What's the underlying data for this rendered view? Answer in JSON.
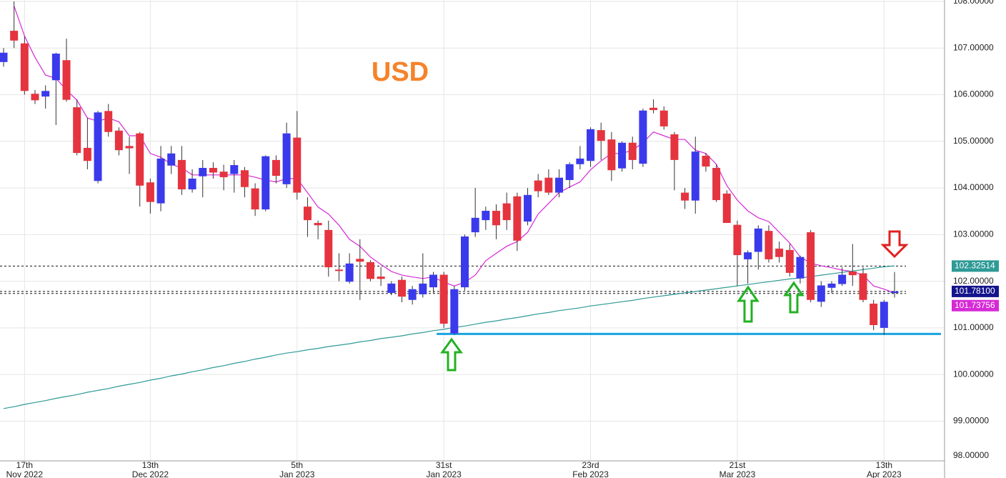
{
  "chart_data": {
    "type": "candlestick",
    "title": "USD",
    "title_color": "#f5832a",
    "ylim": [
      97.95,
      108.03
    ],
    "yticks": [
      {
        "value": 98,
        "label": "98.00000"
      },
      {
        "value": 99,
        "label": "99.00000"
      },
      {
        "value": 100,
        "label": "100.00000"
      },
      {
        "value": 101,
        "label": "101.00000"
      },
      {
        "value": 102,
        "label": "102.00000"
      },
      {
        "value": 103,
        "label": "103.00000"
      },
      {
        "value": 104,
        "label": "104.00000"
      },
      {
        "value": 105,
        "label": "105.00000"
      },
      {
        "value": 106,
        "label": "106.00000"
      },
      {
        "value": 107,
        "label": "107.00000"
      },
      {
        "value": 108,
        "label": "108.00000"
      }
    ],
    "grid": true,
    "up_color": "#3a3aec",
    "down_color": "#e5343f",
    "categories": [
      null,
      null,
      [
        "17th",
        "Nov 2022"
      ],
      null,
      null,
      null,
      null,
      null,
      null,
      null,
      null,
      null,
      null,
      null,
      [
        "13th",
        "Dec 2022"
      ],
      null,
      null,
      null,
      null,
      null,
      null,
      null,
      null,
      null,
      null,
      null,
      null,
      null,
      [
        "5th",
        "Jan 2023"
      ],
      null,
      null,
      null,
      null,
      null,
      null,
      null,
      null,
      null,
      null,
      null,
      null,
      null,
      [
        "31st",
        "Jan 2023"
      ],
      null,
      null,
      null,
      null,
      null,
      null,
      null,
      null,
      null,
      null,
      null,
      null,
      null,
      [
        "23rd",
        "Feb 2023"
      ],
      null,
      null,
      null,
      null,
      null,
      null,
      null,
      null,
      null,
      null,
      null,
      null,
      null,
      [
        "21st",
        "Mar 2023"
      ],
      null,
      null,
      null,
      null,
      null,
      null,
      null,
      null,
      null,
      null,
      null,
      null,
      null,
      [
        "13th",
        "Apr 2023"
      ],
      null
    ],
    "open": [
      106.7,
      107.37,
      107.1,
      106.02,
      105.96,
      106.31,
      106.74,
      105.73,
      104.86,
      104.15,
      105.65,
      105.23,
      104.9,
      105.17,
      104.12,
      103.67,
      104.48,
      104.6,
      103.97,
      104.25,
      104.43,
      104.35,
      104.3,
      104.38,
      103.99,
      103.54,
      104.6,
      104.08,
      105.08,
      103.6,
      103.25,
      103.1,
      102.25,
      101.99,
      102.48,
      102.41,
      102.1,
      101.75,
      102.03,
      101.6,
      101.72,
      101.87,
      102.14,
      100.88,
      101.87,
      103.05,
      103.31,
      103.51,
      103.67,
      103.82,
      103.28,
      104.16,
      104.22,
      103.9,
      104.17,
      104.51,
      104.58,
      105.24,
      105.04,
      104.42,
      104.97,
      104.52,
      105.72,
      105.66,
      105.15,
      103.9,
      103.73,
      104.69,
      104.43,
      103.88,
      103.21,
      102.47,
      102.63,
      103.08,
      102.7,
      102.67,
      102.06,
      103.05,
      101.56,
      101.86,
      101.94,
      102.21,
      102.17,
      101.52,
      101.0,
      101.75
    ],
    "high": [
      107.0,
      108.0,
      107.25,
      106.1,
      106.2,
      106.9,
      107.2,
      105.9,
      105.5,
      105.65,
      105.8,
      105.3,
      105.1,
      105.2,
      104.2,
      104.9,
      104.9,
      104.9,
      104.4,
      104.6,
      104.55,
      104.5,
      104.6,
      104.45,
      104.1,
      104.7,
      104.7,
      105.4,
      105.65,
      103.8,
      103.3,
      103.3,
      102.6,
      102.6,
      102.9,
      102.45,
      102.3,
      102.0,
      102.1,
      101.9,
      102.6,
      102.2,
      102.2,
      101.9,
      103.0,
      104.0,
      103.6,
      103.65,
      103.9,
      103.9,
      104.0,
      104.3,
      104.4,
      104.4,
      104.55,
      104.9,
      105.3,
      105.4,
      105.2,
      105.0,
      105.1,
      105.7,
      105.9,
      105.75,
      105.2,
      104.0,
      105.1,
      104.75,
      104.5,
      103.95,
      103.3,
      102.66,
      103.2,
      103.2,
      102.85,
      102.8,
      102.55,
      103.1,
      102.0,
      102.0,
      102.3,
      102.8,
      102.3,
      101.6,
      101.6,
      102.2
    ],
    "low": [
      106.6,
      107.0,
      106.0,
      105.8,
      105.7,
      105.35,
      105.85,
      104.7,
      104.4,
      104.1,
      105.1,
      104.7,
      104.3,
      103.6,
      103.45,
      103.5,
      104.3,
      103.85,
      103.9,
      103.8,
      104.2,
      103.95,
      103.9,
      103.8,
      103.4,
      103.5,
      104.1,
      104.0,
      103.75,
      102.95,
      102.9,
      102.1,
      102.0,
      101.95,
      101.6,
      102.0,
      101.9,
      101.7,
      101.55,
      101.5,
      101.65,
      101.75,
      101.0,
      100.85,
      101.8,
      102.95,
      103.1,
      102.9,
      103.1,
      102.65,
      103.2,
      103.8,
      103.85,
      103.8,
      104.0,
      104.4,
      104.45,
      104.6,
      104.15,
      104.35,
      104.4,
      104.45,
      105.6,
      105.25,
      103.95,
      103.55,
      103.45,
      104.35,
      103.7,
      103.25,
      101.9,
      101.95,
      102.25,
      102.4,
      102.4,
      102.1,
      101.95,
      101.55,
      101.45,
      101.75,
      101.9,
      101.9,
      101.55,
      100.95,
      100.85,
      101.65
    ],
    "close": [
      106.9,
      107.16,
      106.08,
      105.88,
      106.08,
      106.88,
      105.89,
      104.75,
      104.58,
      105.62,
      105.2,
      104.81,
      104.85,
      104.05,
      103.7,
      104.63,
      104.74,
      103.97,
      104.2,
      104.43,
      104.33,
      104.23,
      104.49,
      104.02,
      103.54,
      104.68,
      104.26,
      105.17,
      103.9,
      103.31,
      103.2,
      102.3,
      102.22,
      102.38,
      102.42,
      102.05,
      102.05,
      101.95,
      101.67,
      101.83,
      101.95,
      102.14,
      101.09,
      101.83,
      102.96,
      103.36,
      103.51,
      103.2,
      103.31,
      102.87,
      103.85,
      103.93,
      103.9,
      104.22,
      104.51,
      104.63,
      105.26,
      105.01,
      104.38,
      104.97,
      104.6,
      105.66,
      105.67,
      105.32,
      104.6,
      103.73,
      104.78,
      104.46,
      103.74,
      103.25,
      102.56,
      102.62,
      103.13,
      102.47,
      102.52,
      102.18,
      102.52,
      101.6,
      101.91,
      101.95,
      102.14,
      102.13,
      101.6,
      101.06,
      101.56,
      101.78
    ],
    "lines": [
      {
        "color": "#d62ad6",
        "values": [
          null,
          107.9,
          107.26,
          106.8,
          106.42,
          106.35,
          106.1,
          105.88,
          105.5,
          105.43,
          105.5,
          105.42,
          105.12,
          105.12,
          104.74,
          104.66,
          104.51,
          104.43,
          104.28,
          104.28,
          104.28,
          104.28,
          104.28,
          104.28,
          104.23,
          104.17,
          104.13,
          104.2,
          104.2,
          103.9,
          103.59,
          103.44,
          103.2,
          102.9,
          102.75,
          102.52,
          102.36,
          102.21,
          102.13,
          102.09,
          102.06,
          102.09,
          101.98,
          101.9,
          101.98,
          102.13,
          102.44,
          102.6,
          102.75,
          102.85,
          103.05,
          103.44,
          103.67,
          103.9,
          104.02,
          104.13,
          104.39,
          104.58,
          104.74,
          104.74,
          104.81,
          104.97,
          105.2,
          105.12,
          105.04,
          105.04,
          104.81,
          104.74,
          104.51,
          104.05,
          103.74,
          103.51,
          103.36,
          103.28,
          103.05,
          102.82,
          102.52,
          102.39,
          102.33,
          102.29,
          102.24,
          102.21,
          102.13,
          101.9,
          101.83,
          101.75
        ]
      },
      {
        "color": "#2e9a96",
        "values": [
          99.27,
          99.31,
          99.36,
          99.4,
          99.44,
          99.49,
          99.53,
          99.57,
          99.62,
          99.66,
          99.7,
          99.75,
          99.79,
          99.83,
          99.88,
          99.92,
          99.97,
          100.01,
          100.06,
          100.1,
          100.15,
          100.19,
          100.24,
          100.28,
          100.33,
          100.37,
          100.42,
          100.46,
          100.49,
          100.53,
          100.56,
          100.6,
          100.63,
          100.66,
          100.7,
          100.73,
          100.77,
          100.8,
          100.83,
          100.87,
          100.9,
          100.94,
          100.97,
          101.01,
          101.04,
          101.08,
          101.12,
          101.15,
          101.19,
          101.22,
          101.26,
          101.3,
          101.33,
          101.37,
          101.4,
          101.43,
          101.47,
          101.5,
          101.53,
          101.56,
          101.59,
          101.63,
          101.66,
          101.69,
          101.72,
          101.75,
          101.78,
          101.81,
          101.84,
          101.87,
          101.9,
          101.93,
          101.96,
          101.99,
          102.02,
          102.05,
          102.07,
          102.1,
          102.13,
          102.16,
          102.19,
          102.22,
          102.25,
          102.28,
          102.31,
          102.33
        ]
      }
    ],
    "price_tags": [
      {
        "value": 102.32514,
        "label": "102.32514",
        "color": "#2e9a96"
      },
      {
        "value": 101.781,
        "label": "101.78100",
        "color": "#14148c"
      },
      {
        "value": 101.73756,
        "label": "101.73756",
        "color": "#d62ad6"
      }
    ],
    "support_line": {
      "value": 100.87,
      "color": "#1aa3df"
    }
  }
}
